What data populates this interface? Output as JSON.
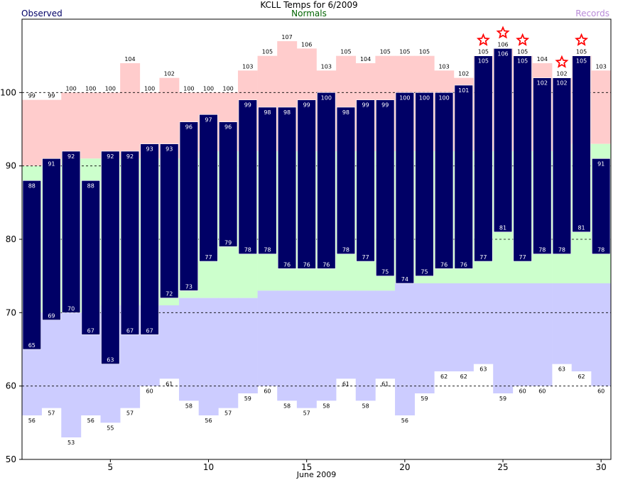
{
  "chart_data": {
    "type": "bar",
    "title": "KCLL Temps for 6/2009",
    "xlabel": "June 2009",
    "legend": {
      "observed": "Observed",
      "normals": "Normals",
      "records": "Records"
    },
    "days": [
      1,
      2,
      3,
      4,
      5,
      6,
      7,
      8,
      9,
      10,
      11,
      12,
      13,
      14,
      15,
      16,
      17,
      18,
      19,
      20,
      21,
      22,
      23,
      24,
      25,
      26,
      27,
      28,
      29,
      30
    ],
    "observed_high": [
      88,
      91,
      92,
      88,
      92,
      92,
      93,
      93,
      96,
      97,
      96,
      99,
      98,
      98,
      99,
      100,
      98,
      99,
      99,
      100,
      100,
      100,
      101,
      105,
      106,
      105,
      102,
      102,
      105,
      91
    ],
    "observed_low": [
      65,
      69,
      70,
      67,
      63,
      67,
      67,
      72,
      73,
      77,
      79,
      78,
      78,
      76,
      76,
      76,
      78,
      77,
      75,
      74,
      75,
      76,
      76,
      77,
      81,
      77,
      78,
      78,
      81,
      78
    ],
    "record_high": [
      99,
      99,
      100,
      100,
      100,
      104,
      100,
      102,
      100,
      100,
      100,
      103,
      105,
      107,
      106,
      103,
      105,
      104,
      105,
      105,
      105,
      103,
      102,
      105,
      106,
      105,
      104,
      102,
      105,
      103
    ],
    "record_low": [
      56,
      57,
      53,
      56,
      55,
      57,
      60,
      61,
      58,
      56,
      57,
      59,
      60,
      58,
      57,
      58,
      61,
      58,
      61,
      56,
      59,
      62,
      62,
      63,
      59,
      60,
      60,
      63,
      62,
      60
    ],
    "normal_high": [
      90,
      90,
      91,
      91,
      91,
      91,
      91,
      91,
      91,
      92,
      92,
      92,
      92,
      92,
      92,
      92,
      92,
      92,
      92,
      92,
      92,
      92,
      92,
      92,
      92,
      92,
      92,
      92,
      93,
      93
    ],
    "normal_low": [
      70,
      70,
      70,
      70,
      71,
      71,
      71,
      71,
      72,
      72,
      72,
      72,
      73,
      73,
      73,
      73,
      73,
      73,
      73,
      74,
      74,
      74,
      74,
      74,
      74,
      74,
      74,
      74,
      74,
      74
    ],
    "record_stars_days": [
      24,
      25,
      26,
      28,
      29
    ],
    "ylim": [
      50,
      110
    ],
    "xlim": [
      0.5,
      30.5
    ],
    "y_ticks": [
      50,
      60,
      70,
      80,
      90,
      100
    ],
    "x_ticks": [
      5,
      10,
      15,
      20,
      25,
      30
    ],
    "grid": "dashed horizontal at 60, 70, 80, 90, 100",
    "colors": {
      "observed": "#000066",
      "observed_text": "#000066",
      "record_high_band": "#ffcccc",
      "normal_band": "#ccffcc",
      "record_low_band": "#ccccff",
      "normals_text": "#006400",
      "records_text": "#b88ad8",
      "star": "#ff0000"
    }
  }
}
